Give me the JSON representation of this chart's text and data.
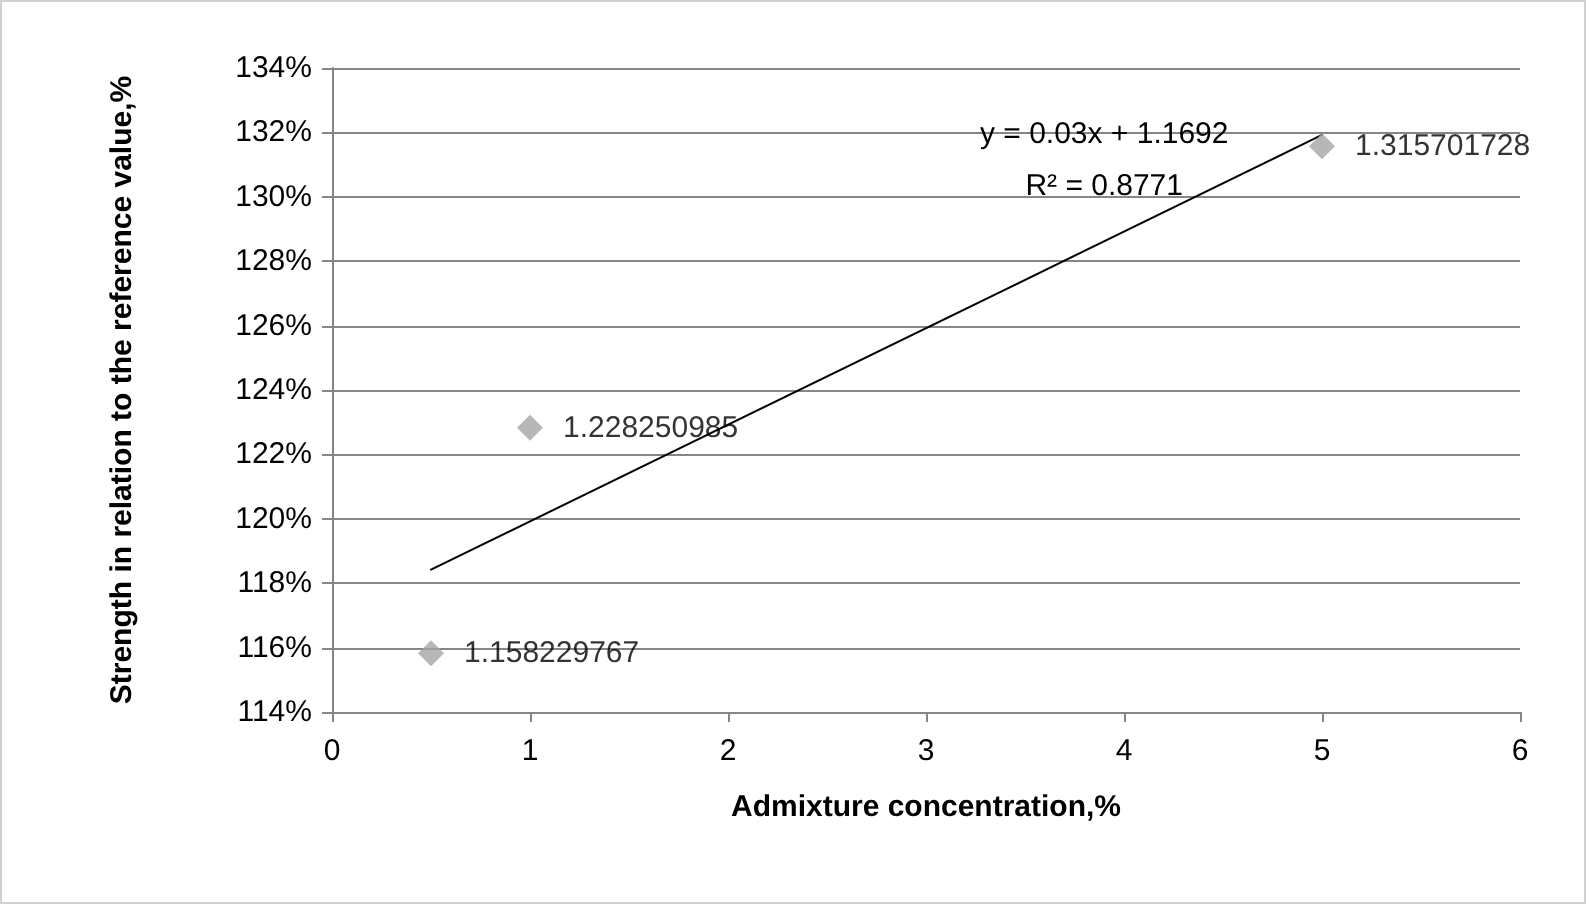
{
  "chart_data": {
    "type": "scatter",
    "xlabel": "Admixture concentration,%",
    "ylabel": "Strength in relation to the reference value,%",
    "xlim": [
      0,
      6
    ],
    "xticks": [
      0,
      1,
      2,
      3,
      4,
      5,
      6
    ],
    "ylim": [
      1.14,
      1.34
    ],
    "yticks": [
      {
        "value": 1.14,
        "label": "114%"
      },
      {
        "value": 1.16,
        "label": "116%"
      },
      {
        "value": 1.18,
        "label": "118%"
      },
      {
        "value": 1.2,
        "label": "120%"
      },
      {
        "value": 1.22,
        "label": "122%"
      },
      {
        "value": 1.24,
        "label": "124%"
      },
      {
        "value": 1.26,
        "label": "126%"
      },
      {
        "value": 1.28,
        "label": "128%"
      },
      {
        "value": 1.3,
        "label": "130%"
      },
      {
        "value": 1.32,
        "label": "132%"
      },
      {
        "value": 1.34,
        "label": "134%"
      }
    ],
    "grid": "y",
    "legend": false,
    "marker": "diamond",
    "series": [
      {
        "color": "#a5a5a5",
        "x": [
          0.5,
          1,
          5
        ],
        "values": [
          1.158229767,
          1.228250985,
          1.315701728
        ],
        "value_labels": [
          "1.158229767",
          "1.228250985",
          "1.315701728"
        ]
      },
      {
        "type": "line",
        "color": "#000000",
        "x": [
          0.5,
          5
        ],
        "values": [
          1.1842,
          1.3192
        ],
        "marker": "none",
        "line_style": "solid"
      }
    ],
    "annotations": [
      "y = 0.03x + 1.1692",
      "R² = 0.8771"
    ]
  }
}
